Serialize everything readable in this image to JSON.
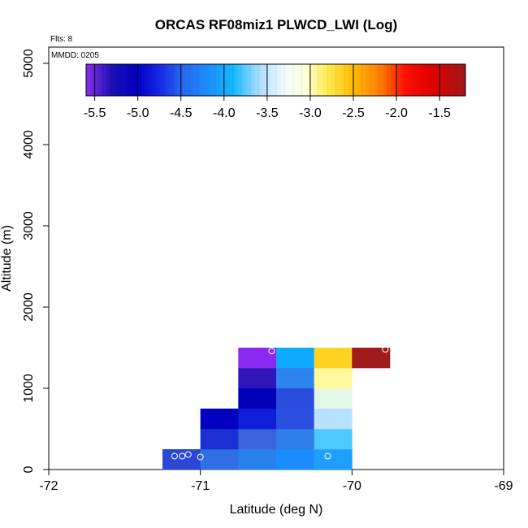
{
  "chart_data": {
    "type": "heatmap",
    "title": "ORCAS RF08miz1 PLWCD_LWI (Log)",
    "xlabel": "Latitude (deg N)",
    "ylabel": "Altitude (m)",
    "xlim": [
      -72,
      -69
    ],
    "ylim": [
      0,
      5200
    ],
    "x_ticks": [
      -72,
      -71,
      -70,
      -69
    ],
    "x_tick_labels": [
      "-72",
      "-71",
      "-70",
      "-69"
    ],
    "y_ticks": [
      0,
      1000,
      2000,
      3000,
      4000,
      5000
    ],
    "y_tick_labels": [
      "0",
      "1000",
      "2000",
      "3000",
      "4000",
      "5000"
    ],
    "notes": {
      "flights": "Flts: 8",
      "mmdd": "MMDD: 0205"
    },
    "colorbar": {
      "range": [
        -5.6,
        -1.2
      ],
      "ticks": [
        -5.5,
        -5.0,
        -4.5,
        -4.0,
        -3.5,
        -3.0,
        -2.5,
        -2.0,
        -1.5
      ],
      "tick_labels": [
        "-5.5",
        "-5.0",
        "-4.5",
        "-4.0",
        "-3.5",
        "-3.0",
        "-2.5",
        "-2.0",
        "-1.5"
      ],
      "stops": [
        {
          "v": -5.6,
          "color": "#8b2cf0"
        },
        {
          "v": -5.3,
          "color": "#1d10b2"
        },
        {
          "v": -5.0,
          "color": "#0000c8"
        },
        {
          "v": -4.75,
          "color": "#1828e6"
        },
        {
          "v": -4.5,
          "color": "#2266ee"
        },
        {
          "v": -4.2,
          "color": "#1e8cff"
        },
        {
          "v": -3.9,
          "color": "#10b8ff"
        },
        {
          "v": -3.6,
          "color": "#a8dcff"
        },
        {
          "v": -3.3,
          "color": "#f0fbff"
        },
        {
          "v": -3.05,
          "color": "#ffffd8"
        },
        {
          "v": -2.8,
          "color": "#ffec50"
        },
        {
          "v": -2.5,
          "color": "#ffbb00"
        },
        {
          "v": -2.2,
          "color": "#ff8000"
        },
        {
          "v": -1.9,
          "color": "#ff1000"
        },
        {
          "v": -1.6,
          "color": "#e00000"
        },
        {
          "v": -1.2,
          "color": "#a01818"
        }
      ]
    },
    "bin_width_lat": 0.25,
    "bin_height_m": 250,
    "cells": [
      {
        "lat": -71.25,
        "alt": 0,
        "color": "#2a47d6"
      },
      {
        "lat": -71.0,
        "alt": 0,
        "color": "#2f6fe6"
      },
      {
        "lat": -70.75,
        "alt": 0,
        "color": "#2680f0"
      },
      {
        "lat": -70.5,
        "alt": 0,
        "color": "#1b8cff"
      },
      {
        "lat": -70.25,
        "alt": 0,
        "color": "#1e9fff"
      },
      {
        "lat": -71.0,
        "alt": 250,
        "color": "#1a2fd4"
      },
      {
        "lat": -70.75,
        "alt": 250,
        "color": "#3a62dd"
      },
      {
        "lat": -70.5,
        "alt": 250,
        "color": "#2e7de8"
      },
      {
        "lat": -70.25,
        "alt": 250,
        "color": "#4ec8ff"
      },
      {
        "lat": -71.0,
        "alt": 500,
        "color": "#0000c0"
      },
      {
        "lat": -70.75,
        "alt": 500,
        "color": "#0f1ed8"
      },
      {
        "lat": -70.5,
        "alt": 500,
        "color": "#2a4fe0"
      },
      {
        "lat": -70.25,
        "alt": 500,
        "color": "#b8e0ff"
      },
      {
        "lat": -70.75,
        "alt": 750,
        "color": "#0000b8"
      },
      {
        "lat": -70.5,
        "alt": 750,
        "color": "#2b4bdc"
      },
      {
        "lat": -70.25,
        "alt": 750,
        "color": "#e3f7e8"
      },
      {
        "lat": -70.75,
        "alt": 1000,
        "color": "#3016b8"
      },
      {
        "lat": -70.5,
        "alt": 1000,
        "color": "#2d83f0"
      },
      {
        "lat": -70.25,
        "alt": 1000,
        "color": "#fff89a"
      },
      {
        "lat": -70.75,
        "alt": 1250,
        "color": "#8a2af0"
      },
      {
        "lat": -70.5,
        "alt": 1250,
        "color": "#0eaaff"
      },
      {
        "lat": -70.25,
        "alt": 1250,
        "color": "#ffd223"
      },
      {
        "lat": -70.0,
        "alt": 1250,
        "color": "#a01c1c"
      }
    ],
    "markers": [
      {
        "lat": -71.17,
        "alt": 165
      },
      {
        "lat": -71.12,
        "alt": 165
      },
      {
        "lat": -71.08,
        "alt": 185
      },
      {
        "lat": -71.0,
        "alt": 155
      },
      {
        "lat": -70.53,
        "alt": 1460
      },
      {
        "lat": -70.16,
        "alt": 165
      },
      {
        "lat": -69.78,
        "alt": 1480
      }
    ]
  }
}
